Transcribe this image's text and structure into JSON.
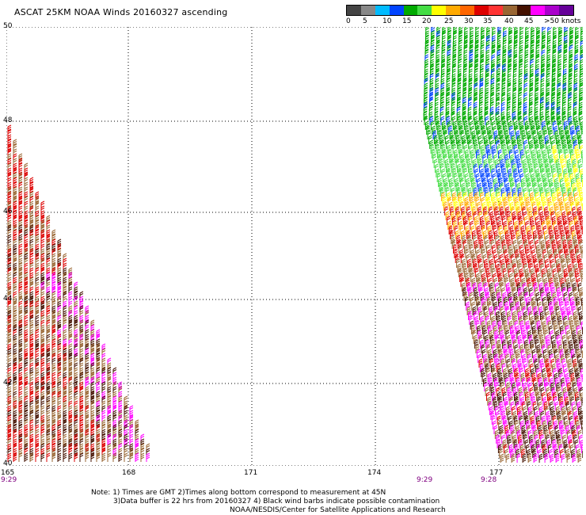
{
  "title": "ASCAT 25KM NOAA Winds 20160327 ascending",
  "legend": {
    "colors": [
      "#444444",
      "#888888",
      "#00bbff",
      "#0044ff",
      "#00aa00",
      "#44dd44",
      "#ffff00",
      "#ffaa00",
      "#ff6600",
      "#dd0000",
      "#ff3333",
      "#996633",
      "#441100",
      "#ff00ff",
      "#aa00cc",
      "#660099"
    ],
    "labels": [
      "0",
      "5",
      "10",
      "15",
      "20",
      "25",
      "30",
      "35",
      "40",
      "45",
      ">50 knots"
    ]
  },
  "axes": {
    "lat_labels": [
      "50",
      "48",
      "46",
      "44",
      "42",
      "40"
    ],
    "lon_labels": [
      "165",
      "168",
      "171",
      "174",
      "177"
    ],
    "times": [
      "9:29",
      "9:29",
      "9:28"
    ]
  },
  "notes": {
    "line1": "Note: 1) Times are GMT 2)Times along bottom correspond to measurement at 45N",
    "line2": "3)Data buffer is 22 hrs from 20160327  4) Black wind barbs indicate possible contamination",
    "line3": "NOAA/NESDIS/Center for Satellite Applications and Research"
  }
}
